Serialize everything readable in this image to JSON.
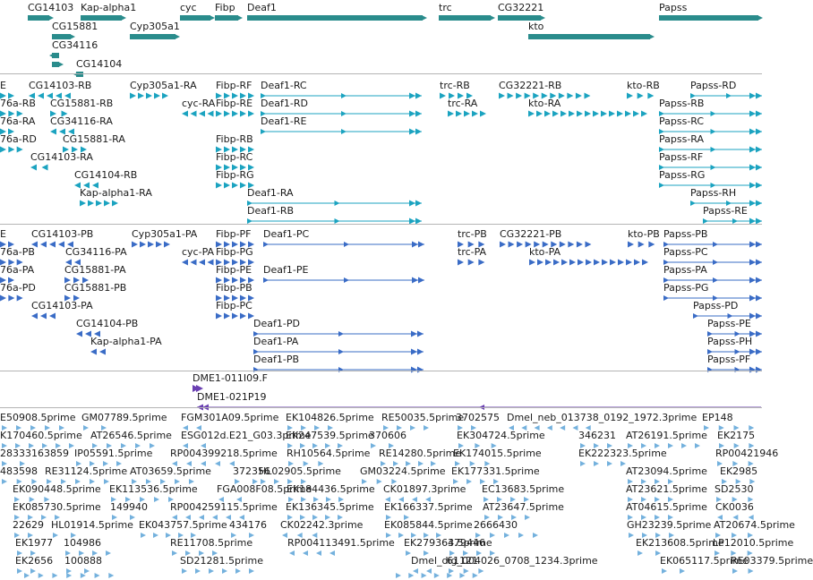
{
  "colors": {
    "gene": "#2a8c8c",
    "mrna": "#1ba3c0",
    "protein": "#3a6cc6",
    "clone": "#6a3fb2",
    "est": "#74b1dd",
    "separator": "#b4b4b4"
  },
  "tracks": {
    "genes": [
      {
        "label": "CG14103",
        "color": "gene",
        "type": "block",
        "dir": "r"
      },
      {
        "label": "Kap-alpha1",
        "color": "gene",
        "type": "block",
        "dir": "r"
      },
      {
        "label": "cyc",
        "color": "gene",
        "type": "block",
        "dir": "r"
      },
      {
        "label": "Fibp",
        "color": "gene",
        "type": "block",
        "dir": "r"
      },
      {
        "label": "Deaf1",
        "color": "gene",
        "type": "block",
        "dir": "r"
      },
      {
        "label": "trc",
        "color": "gene",
        "type": "block",
        "dir": "r"
      },
      {
        "label": "CG32221",
        "color": "gene",
        "type": "block",
        "dir": "r"
      },
      {
        "label": "Papss",
        "color": "gene",
        "type": "block",
        "dir": "r"
      },
      {
        "label": "CG15881",
        "color": "gene",
        "type": "block",
        "dir": "r"
      },
      {
        "label": "Cyp305a1",
        "color": "gene",
        "type": "block",
        "dir": "r"
      },
      {
        "label": "kto",
        "color": "gene",
        "type": "block",
        "dir": "r"
      },
      {
        "label": "CG34116",
        "color": "gene",
        "type": "block",
        "dir": "l"
      },
      {
        "label": "",
        "color": "gene",
        "type": "block",
        "dir": "r"
      },
      {
        "label": "CG14104",
        "color": "gene",
        "type": "block",
        "dir": "l"
      }
    ],
    "transcripts": [
      {
        "label": "E",
        "color": "mrna",
        "type": "exons",
        "dir": "r"
      },
      {
        "label": "CG14103-RB",
        "color": "mrna",
        "type": "exons",
        "dir": "l"
      },
      {
        "label": "Cyp305a1-RA",
        "color": "mrna",
        "type": "exons",
        "dir": "r"
      },
      {
        "label": "Fibp-RF",
        "color": "mrna",
        "type": "exons",
        "dir": "r"
      },
      {
        "label": "Deaf1-RC",
        "color": "mrna",
        "type": "spliced",
        "dir": "r"
      },
      {
        "label": "trc-RB",
        "color": "mrna",
        "type": "exons",
        "dir": "r"
      },
      {
        "label": "CG32221-RB",
        "color": "mrna",
        "type": "exons",
        "dir": "r"
      },
      {
        "label": "kto-RB",
        "color": "mrna",
        "type": "exons",
        "dir": "r"
      },
      {
        "label": "Papss-RD",
        "color": "mrna",
        "type": "spliced",
        "dir": "r"
      },
      {
        "label": "76a-RB",
        "color": "mrna",
        "type": "exons",
        "dir": "r"
      },
      {
        "label": "CG15881-RB",
        "color": "mrna",
        "type": "exons",
        "dir": "r"
      },
      {
        "label": "cyc-RA",
        "color": "mrna",
        "type": "exons",
        "dir": "l"
      },
      {
        "label": "Fibp-RE",
        "color": "mrna",
        "type": "exons",
        "dir": "r"
      },
      {
        "label": "Deaf1-RD",
        "color": "mrna",
        "type": "spliced",
        "dir": "r"
      },
      {
        "label": "trc-RA",
        "color": "mrna",
        "type": "exons",
        "dir": "r"
      },
      {
        "label": "kto-RA",
        "color": "mrna",
        "type": "exons",
        "dir": "r"
      },
      {
        "label": "Papss-RB",
        "color": "mrna",
        "type": "spliced",
        "dir": "r"
      },
      {
        "label": "76a-RA",
        "color": "mrna",
        "type": "exons",
        "dir": "r"
      },
      {
        "label": "CG34116-RA",
        "color": "mrna",
        "type": "exons",
        "dir": "l"
      },
      {
        "label": "Deaf1-RE",
        "color": "mrna",
        "type": "spliced",
        "dir": "r"
      },
      {
        "label": "Papss-RC",
        "color": "mrna",
        "type": "spliced",
        "dir": "r"
      },
      {
        "label": "76a-RD",
        "color": "mrna",
        "type": "exons",
        "dir": "r"
      },
      {
        "label": "CG15881-RA",
        "color": "mrna",
        "type": "exons",
        "dir": "r"
      },
      {
        "label": "Fibp-RB",
        "color": "mrna",
        "type": "exons",
        "dir": "r"
      },
      {
        "label": "Papss-RA",
        "color": "mrna",
        "type": "spliced",
        "dir": "r"
      },
      {
        "label": "CG14103-RA",
        "color": "mrna",
        "type": "exons",
        "dir": "l"
      },
      {
        "label": "Fibp-RC",
        "color": "mrna",
        "type": "exons",
        "dir": "r"
      },
      {
        "label": "Papss-RF",
        "color": "mrna",
        "type": "spliced",
        "dir": "r"
      },
      {
        "label": "CG14104-RB",
        "color": "mrna",
        "type": "exons",
        "dir": "l"
      },
      {
        "label": "Fibp-RG",
        "color": "mrna",
        "type": "exons",
        "dir": "r"
      },
      {
        "label": "Papss-RG",
        "color": "mrna",
        "type": "spliced",
        "dir": "r"
      },
      {
        "label": "Kap-alpha1-RA",
        "color": "mrna",
        "type": "exons",
        "dir": "r"
      },
      {
        "label": "Deaf1-RA",
        "color": "mrna",
        "type": "spliced",
        "dir": "r"
      },
      {
        "label": "Papss-RH",
        "color": "mrna",
        "type": "spliced",
        "dir": "r"
      },
      {
        "label": "Deaf1-RB",
        "color": "mrna",
        "type": "spliced",
        "dir": "r"
      },
      {
        "label": "Papss-RE",
        "color": "mrna",
        "type": "spliced",
        "dir": "r"
      }
    ],
    "proteins": [
      {
        "label": "E",
        "color": "protein",
        "type": "exons",
        "dir": "r"
      },
      {
        "label": "CG14103-PB",
        "color": "protein",
        "type": "exons",
        "dir": "l"
      },
      {
        "label": "Cyp305a1-PA",
        "color": "protein",
        "type": "exons",
        "dir": "r"
      },
      {
        "label": "Fibp-PF",
        "color": "protein",
        "type": "exons",
        "dir": "r"
      },
      {
        "label": "Deaf1-PC",
        "color": "protein",
        "type": "spliced",
        "dir": "r"
      },
      {
        "label": "trc-PB",
        "color": "protein",
        "type": "exons",
        "dir": "r"
      },
      {
        "label": "CG32221-PB",
        "color": "protein",
        "type": "exons",
        "dir": "r"
      },
      {
        "label": "kto-PB",
        "color": "protein",
        "type": "exons",
        "dir": "r"
      },
      {
        "label": "Papss-PB",
        "color": "protein",
        "type": "spliced",
        "dir": "r"
      },
      {
        "label": "76a-PB",
        "color": "protein",
        "type": "exons",
        "dir": "r"
      },
      {
        "label": "CG34116-PA",
        "color": "protein",
        "type": "exons",
        "dir": "l"
      },
      {
        "label": "cyc-PA",
        "color": "protein",
        "type": "exons",
        "dir": "l"
      },
      {
        "label": "Fibp-PG",
        "color": "protein",
        "type": "exons",
        "dir": "r"
      },
      {
        "label": "trc-PA",
        "color": "protein",
        "type": "exons",
        "dir": "r"
      },
      {
        "label": "kto-PA",
        "color": "protein",
        "type": "exons",
        "dir": "r"
      },
      {
        "label": "Papss-PC",
        "color": "protein",
        "type": "spliced",
        "dir": "r"
      },
      {
        "label": "76a-PA",
        "color": "protein",
        "type": "exons",
        "dir": "r"
      },
      {
        "label": "CG15881-PA",
        "color": "protein",
        "type": "exons",
        "dir": "r"
      },
      {
        "label": "Fibp-PE",
        "color": "protein",
        "type": "exons",
        "dir": "r"
      },
      {
        "label": "Deaf1-PE",
        "color": "protein",
        "type": "spliced",
        "dir": "r"
      },
      {
        "label": "Papss-PA",
        "color": "protein",
        "type": "spliced",
        "dir": "r"
      },
      {
        "label": "76a-PD",
        "color": "protein",
        "type": "exons",
        "dir": "r"
      },
      {
        "label": "CG15881-PB",
        "color": "protein",
        "type": "exons",
        "dir": "r"
      },
      {
        "label": "Fibp-PB",
        "color": "protein",
        "type": "exons",
        "dir": "r"
      },
      {
        "label": "Papss-PG",
        "color": "protein",
        "type": "spliced",
        "dir": "r"
      },
      {
        "label": "CG14103-PA",
        "color": "protein",
        "type": "exons",
        "dir": "l"
      },
      {
        "label": "Fibp-PC",
        "color": "protein",
        "type": "exons",
        "dir": "r"
      },
      {
        "label": "Papss-PD",
        "color": "protein",
        "type": "spliced",
        "dir": "r"
      },
      {
        "label": "CG14104-PB",
        "color": "protein",
        "type": "exons",
        "dir": "l"
      },
      {
        "label": "Deaf1-PD",
        "color": "protein",
        "type": "spliced",
        "dir": "r"
      },
      {
        "label": "Papss-PE",
        "color": "protein",
        "type": "spliced",
        "dir": "r"
      },
      {
        "label": "Kap-alpha1-PA",
        "color": "protein",
        "type": "exons",
        "dir": "l"
      },
      {
        "label": "Deaf1-PA",
        "color": "protein",
        "type": "spliced",
        "dir": "r"
      },
      {
        "label": "Papss-PH",
        "color": "protein",
        "type": "spliced",
        "dir": "r"
      },
      {
        "label": "Deaf1-PB",
        "color": "protein",
        "type": "spliced",
        "dir": "r"
      },
      {
        "label": "Papss-PF",
        "color": "protein",
        "type": "spliced",
        "dir": "r"
      }
    ],
    "clones": [
      {
        "label": "DME1-011I09.F",
        "color": "clone",
        "type": "arrow",
        "dir": "r"
      },
      {
        "label": "DME1-021P19",
        "color": "clone",
        "type": "spliced",
        "dir": "l"
      }
    ],
    "ests": [
      {
        "label": "E50908.5prime",
        "color": "est",
        "type": "est",
        "dir": "r"
      },
      {
        "label": "GM07789.5prime",
        "color": "est",
        "type": "est",
        "dir": "r"
      },
      {
        "label": "FGM301A09.5prime",
        "color": "est",
        "type": "est",
        "dir": "l"
      },
      {
        "label": "EK104826.5prime",
        "color": "est",
        "type": "est",
        "dir": "r"
      },
      {
        "label": "RE50035.5prime",
        "color": "est",
        "type": "est",
        "dir": "r"
      },
      {
        "label": "3702575",
        "color": "est",
        "type": "est",
        "dir": "r"
      },
      {
        "label": "Dmel_neb_013738_0192_1972.3prime",
        "color": "est",
        "type": "est",
        "dir": "l"
      },
      {
        "label": "EP148",
        "color": "est",
        "type": "est",
        "dir": "r"
      },
      {
        "label": "K170460.5prime",
        "color": "est",
        "type": "est",
        "dir": "r"
      },
      {
        "label": "AT26546.5prime",
        "color": "est",
        "type": "est",
        "dir": "r"
      },
      {
        "label": "ESG012d.E21_G03.3prime",
        "color": "est",
        "type": "est",
        "dir": "l"
      },
      {
        "label": "EK247539.5prime",
        "color": "est",
        "type": "est",
        "dir": "r"
      },
      {
        "label": "370606",
        "color": "est",
        "type": "est",
        "dir": "r"
      },
      {
        "label": "EK304724.5prime",
        "color": "est",
        "type": "est",
        "dir": "r"
      },
      {
        "label": "346231",
        "color": "est",
        "type": "est",
        "dir": "r"
      },
      {
        "label": "AT26191.5prime",
        "color": "est",
        "type": "est",
        "dir": "r"
      },
      {
        "label": "EK2175",
        "color": "est",
        "type": "est",
        "dir": "r"
      },
      {
        "label": "28333163859",
        "color": "est",
        "type": "est",
        "dir": "r"
      },
      {
        "label": "IP05591.5prime",
        "color": "est",
        "type": "est",
        "dir": "r"
      },
      {
        "label": "RP004399218.5prime",
        "color": "est",
        "type": "est",
        "dir": "l"
      },
      {
        "label": "RH10564.5prime",
        "color": "est",
        "type": "est",
        "dir": "r"
      },
      {
        "label": "RE14280.5prime",
        "color": "est",
        "type": "est",
        "dir": "r"
      },
      {
        "label": "EK174015.5prime",
        "color": "est",
        "type": "est",
        "dir": "r"
      },
      {
        "label": "EK222323.5prime",
        "color": "est",
        "type": "est",
        "dir": "r"
      },
      {
        "label": "RP00421946",
        "color": "est",
        "type": "est",
        "dir": "r"
      },
      {
        "label": "483598",
        "color": "est",
        "type": "est",
        "dir": "r"
      },
      {
        "label": "RE31124.5prime",
        "color": "est",
        "type": "est",
        "dir": "r"
      },
      {
        "label": "AT03659.5prime",
        "color": "est",
        "type": "est",
        "dir": "r"
      },
      {
        "label": "372356",
        "color": "est",
        "type": "est",
        "dir": "r"
      },
      {
        "label": "HL02905.5prime",
        "color": "est",
        "type": "est",
        "dir": "r"
      },
      {
        "label": "GM03224.5prime",
        "color": "est",
        "type": "est",
        "dir": "r"
      },
      {
        "label": "EK177331.5prime",
        "color": "est",
        "type": "est",
        "dir": "r"
      },
      {
        "label": "AT23094.5prime",
        "color": "est",
        "type": "est",
        "dir": "r"
      },
      {
        "label": "EK2985",
        "color": "est",
        "type": "est",
        "dir": "r"
      },
      {
        "label": "EK090448.5prime",
        "color": "est",
        "type": "est",
        "dir": "r"
      },
      {
        "label": "EK113536.5prime",
        "color": "est",
        "type": "est",
        "dir": "r"
      },
      {
        "label": "FGA008F08.5prime",
        "color": "est",
        "type": "est",
        "dir": "l"
      },
      {
        "label": "EK184436.5prime",
        "color": "est",
        "type": "est",
        "dir": "r"
      },
      {
        "label": "CK01897.3prime",
        "color": "est",
        "type": "est",
        "dir": "l"
      },
      {
        "label": "EC13683.5prime",
        "color": "est",
        "type": "est",
        "dir": "r"
      },
      {
        "label": "AT23621.5prime",
        "color": "est",
        "type": "est",
        "dir": "r"
      },
      {
        "label": "SD2530",
        "color": "est",
        "type": "est",
        "dir": "r"
      },
      {
        "label": "EK085730.5prime",
        "color": "est",
        "type": "est",
        "dir": "r"
      },
      {
        "label": "149940",
        "color": "est",
        "type": "est",
        "dir": "r"
      },
      {
        "label": "RP004259115.5prime",
        "color": "est",
        "type": "est",
        "dir": "l"
      },
      {
        "label": "EK136345.5prime",
        "color": "est",
        "type": "est",
        "dir": "r"
      },
      {
        "label": "EK166337.5prime",
        "color": "est",
        "type": "est",
        "dir": "r"
      },
      {
        "label": "AT23647.5prime",
        "color": "est",
        "type": "est",
        "dir": "r"
      },
      {
        "label": "AT04615.5prime",
        "color": "est",
        "type": "est",
        "dir": "r"
      },
      {
        "label": "CK0036",
        "color": "est",
        "type": "est",
        "dir": "l"
      },
      {
        "label": "22629",
        "color": "est",
        "type": "est",
        "dir": "r"
      },
      {
        "label": "HL01914.5prime",
        "color": "est",
        "type": "est",
        "dir": "r"
      },
      {
        "label": "EK043757.5prime",
        "color": "est",
        "type": "est",
        "dir": "r"
      },
      {
        "label": "434176",
        "color": "est",
        "type": "est",
        "dir": "r"
      },
      {
        "label": "CK02242.3prime",
        "color": "est",
        "type": "est",
        "dir": "l"
      },
      {
        "label": "EK085844.5prime",
        "color": "est",
        "type": "est",
        "dir": "r"
      },
      {
        "label": "2666430",
        "color": "est",
        "type": "est",
        "dir": "r"
      },
      {
        "label": "GH23239.5prime",
        "color": "est",
        "type": "est",
        "dir": "r"
      },
      {
        "label": "AT20674.5prime",
        "color": "est",
        "type": "est",
        "dir": "r"
      },
      {
        "label": "EK1977",
        "color": "est",
        "type": "est",
        "dir": "r"
      },
      {
        "label": "104986",
        "color": "est",
        "type": "est",
        "dir": "r"
      },
      {
        "label": "RE11708.5prime",
        "color": "est",
        "type": "est",
        "dir": "r"
      },
      {
        "label": "RP004113491.5prime",
        "color": "est",
        "type": "est",
        "dir": "l"
      },
      {
        "label": "EK279364.5prime",
        "color": "est",
        "type": "est",
        "dir": "r"
      },
      {
        "label": "379446",
        "color": "est",
        "type": "est",
        "dir": "r"
      },
      {
        "label": "EK213608.5prime",
        "color": "est",
        "type": "est",
        "dir": "r"
      },
      {
        "label": "LP12010.5prime",
        "color": "est",
        "type": "est",
        "dir": "r"
      },
      {
        "label": "EK2656",
        "color": "est",
        "type": "est",
        "dir": "r"
      },
      {
        "label": "100888",
        "color": "est",
        "type": "est",
        "dir": "r"
      },
      {
        "label": "SD21281.5prime",
        "color": "est",
        "type": "est",
        "dir": "r"
      },
      {
        "label": "Dmel_dig_004026_0708_1234.3prime",
        "color": "est",
        "type": "est",
        "dir": "l"
      },
      {
        "label": "61121",
        "color": "est",
        "type": "est",
        "dir": "r"
      },
      {
        "label": "EK065117.5prime",
        "color": "est",
        "type": "est",
        "dir": "r"
      },
      {
        "label": "RE03379.5prime",
        "color": "est",
        "type": "est",
        "dir": "r"
      },
      {
        "label": "",
        "color": "est",
        "type": "est",
        "dir": "r"
      },
      {
        "label": "",
        "color": "est",
        "type": "est",
        "dir": "r"
      }
    ]
  }
}
